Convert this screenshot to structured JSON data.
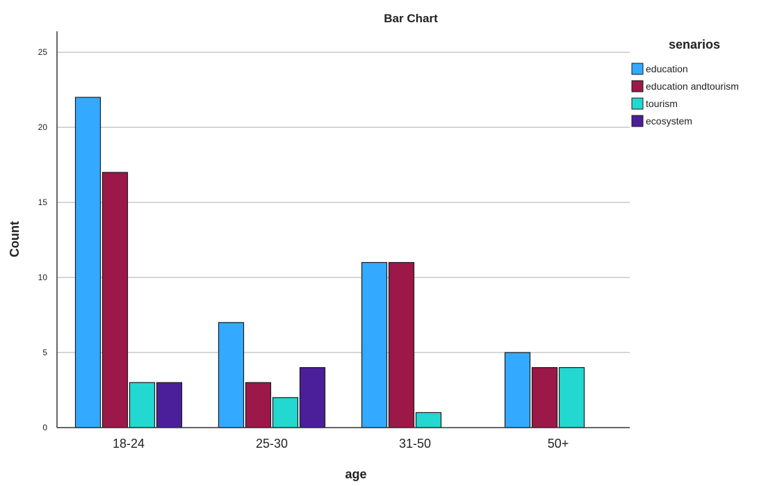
{
  "chart_data": {
    "type": "bar",
    "title": "Bar Chart",
    "xlabel": "age",
    "ylabel": "Count",
    "categories": [
      "18-24",
      "25-30",
      "31-50",
      "50+"
    ],
    "yticks": [
      0,
      5,
      10,
      15,
      20,
      25
    ],
    "ylim": [
      0,
      26.4
    ],
    "grid": true,
    "legend": {
      "title": "senarios",
      "position": "top-right"
    },
    "series": [
      {
        "name": "education",
        "color": "#33aaff",
        "values": [
          22,
          7,
          11,
          5
        ]
      },
      {
        "name": "education andtourism",
        "color": "#9b1849",
        "values": [
          17,
          3,
          11,
          4
        ]
      },
      {
        "name": "tourism",
        "color": "#22d8d0",
        "values": [
          3,
          2,
          1,
          4
        ]
      },
      {
        "name": "ecosystem",
        "color": "#4b1f9a",
        "values": [
          3,
          4,
          0,
          0
        ]
      }
    ]
  }
}
